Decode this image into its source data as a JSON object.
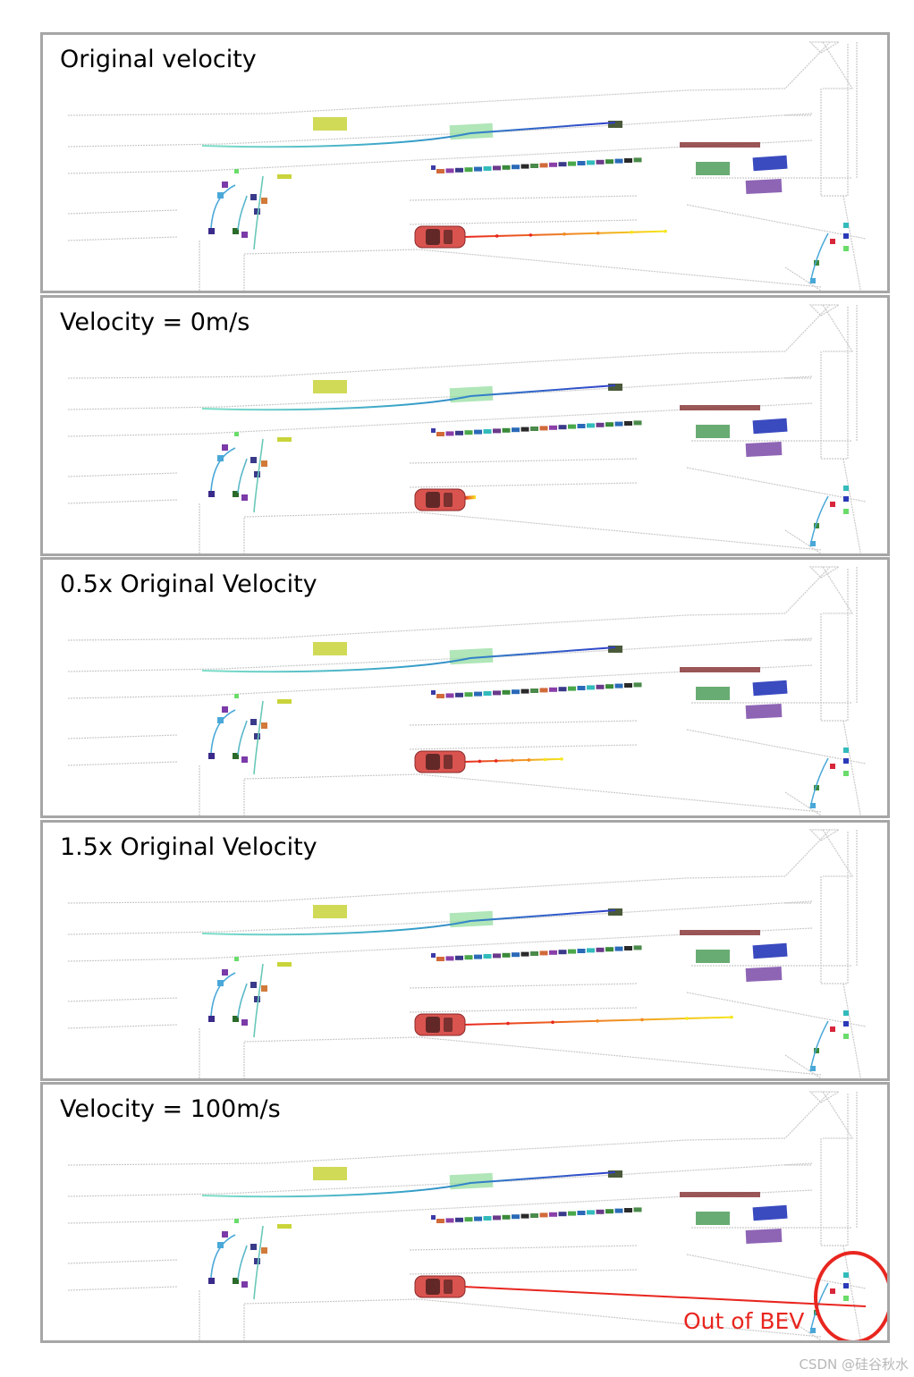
{
  "panels": [
    {
      "title": "Original velocity",
      "trajectory": "original"
    },
    {
      "title": "Velocity = 0m/s",
      "trajectory": "zero"
    },
    {
      "title": "0.5x Original Velocity",
      "trajectory": "half"
    },
    {
      "title": "1.5x Original Velocity",
      "trajectory": "one_and_half"
    },
    {
      "title": "Velocity = 100m/s",
      "trajectory": "hundred",
      "annotation": "Out of BEV"
    }
  ],
  "colors": {
    "ego_car": "#d9534f",
    "trajectory_start": "#e8261f",
    "trajectory_end": "#f5e61a",
    "annotation": "#e8261f",
    "panel_border": "#a6a6a6"
  },
  "watermark": "CSDN @硅谷秋水"
}
